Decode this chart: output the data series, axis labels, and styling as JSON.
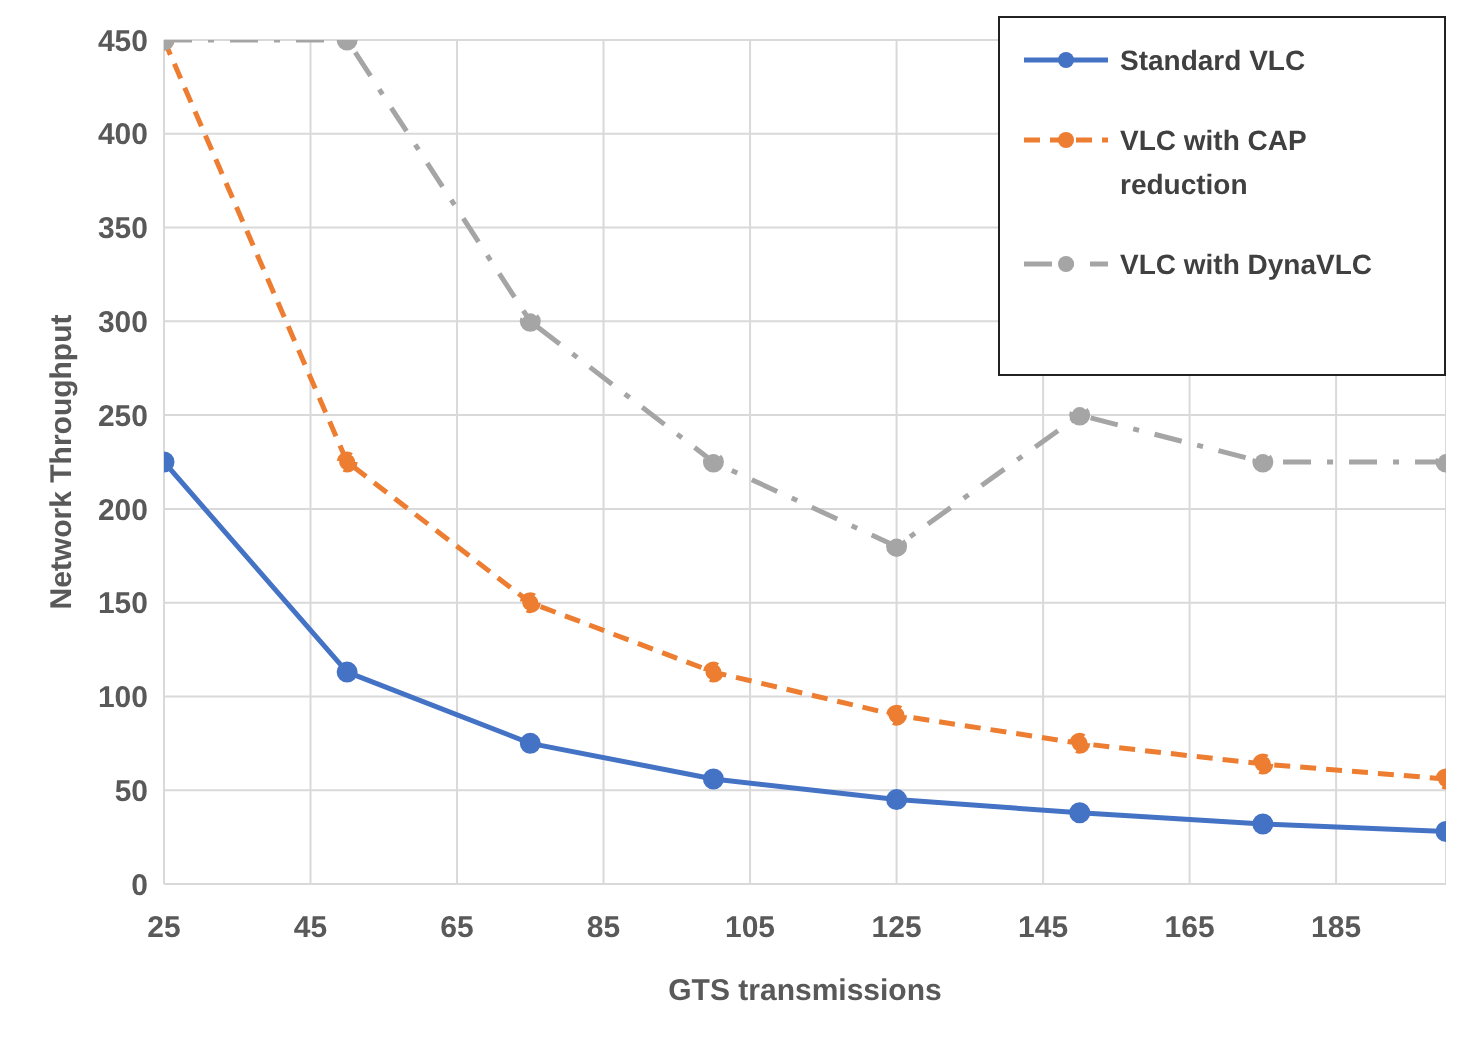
{
  "chart_data": {
    "type": "line",
    "xlabel": "GTS transmissions",
    "ylabel": "Network Throughput",
    "x": [
      25,
      50,
      75,
      100,
      125,
      150,
      175,
      200
    ],
    "series": [
      {
        "name": "Standard VLC",
        "color": "#4472c4",
        "values": [
          225,
          113,
          75,
          56,
          45,
          38,
          32,
          28
        ],
        "line_style": "solid"
      },
      {
        "name": "VLC with CAP reduction",
        "color": "#ed7d31",
        "values": [
          450,
          225,
          150,
          113,
          90,
          75,
          64,
          56
        ],
        "line_style": "dashed"
      },
      {
        "name": "VLC with DynaVLC",
        "color": "#a5a5a5",
        "values": [
          450,
          450,
          300,
          225,
          180,
          250,
          225,
          225
        ],
        "line_style": "dashdot"
      }
    ],
    "xlim": [
      25,
      200
    ],
    "xticks": [
      25,
      45,
      65,
      85,
      105,
      125,
      145,
      165,
      185
    ],
    "ylim": [
      0,
      450
    ],
    "yticks": [
      0,
      50,
      100,
      150,
      200,
      250,
      300,
      350,
      400,
      450
    ],
    "grid": true,
    "legend": "top right",
    "marker": "circle"
  }
}
